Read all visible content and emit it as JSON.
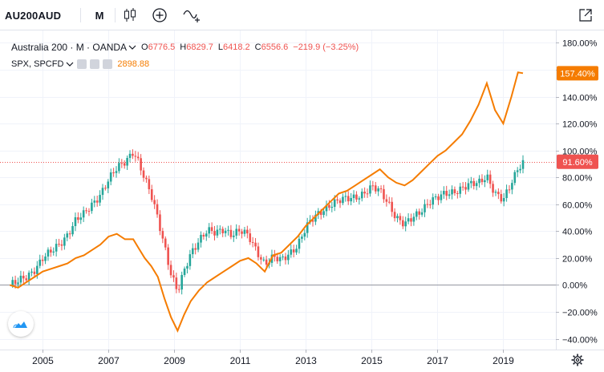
{
  "toolbar": {
    "symbol": "AU200AUD",
    "interval": "M",
    "icons": [
      "candles-icon",
      "plus-circle-icon",
      "indicators-icon",
      "fullscreen-icon"
    ]
  },
  "legend": {
    "main_title": "Australia 200 · M · OANDA",
    "open_key": "O",
    "open_val": "6776.5",
    "high_key": "H",
    "high_val": "6829.7",
    "low_key": "L",
    "low_val": "6418.2",
    "close_key": "C",
    "close_val": "6556.6",
    "change": "−219.9 (−3.25%)",
    "compare_title": "SPX, SPCFD",
    "compare_val": "2898.88"
  },
  "colors": {
    "up": "#26a69a",
    "down": "#ef5350",
    "compare": "#f57c00",
    "grid": "#e0e3eb"
  },
  "chart_data": {
    "type": "line",
    "title": "",
    "y_unit": "%",
    "ylim": [
      -48,
      188
    ],
    "y_ticks": [
      "180.00%",
      "160.00%",
      "140.00%",
      "120.00%",
      "100.00%",
      "80.00%",
      "60.00%",
      "40.00%",
      "20.00%",
      "0.00%",
      "−20.00%",
      "−40.00%"
    ],
    "y_tick_values": [
      180,
      160,
      140,
      120,
      100,
      80,
      60,
      40,
      20,
      0,
      -20,
      -40
    ],
    "x_ticks": [
      "2005",
      "2007",
      "2009",
      "2011",
      "2013",
      "2015",
      "2017",
      "2019"
    ],
    "x_tick_years": [
      2005,
      2007,
      2009,
      2011,
      2013,
      2015,
      2017,
      2019
    ],
    "xlim": [
      2003.7,
      2020.6
    ],
    "badges": {
      "compare": {
        "label": "157.40%",
        "value": 157.4
      },
      "main": {
        "label": "91.60%",
        "value": 91.6
      }
    },
    "series": [
      {
        "name": "Australia 200",
        "style": "candles",
        "x": [
          2004.0,
          2004.25,
          2004.5,
          2004.75,
          2005.0,
          2005.25,
          2005.5,
          2005.75,
          2006.0,
          2006.25,
          2006.5,
          2006.75,
          2007.0,
          2007.25,
          2007.5,
          2007.75,
          2007.9,
          2008.1,
          2008.3,
          2008.5,
          2008.7,
          2008.9,
          2009.1,
          2009.3,
          2009.5,
          2009.75,
          2010.0,
          2010.25,
          2010.5,
          2010.75,
          2011.0,
          2011.25,
          2011.5,
          2011.75,
          2012.0,
          2012.25,
          2012.5,
          2012.75,
          2013.0,
          2013.25,
          2013.5,
          2013.75,
          2014.0,
          2014.25,
          2014.5,
          2014.75,
          2015.0,
          2015.25,
          2015.5,
          2015.75,
          2016.0,
          2016.25,
          2016.5,
          2016.75,
          2017.0,
          2017.25,
          2017.5,
          2017.75,
          2018.0,
          2018.25,
          2018.5,
          2018.75,
          2019.0,
          2019.25,
          2019.45,
          2019.6
        ],
        "values": [
          0,
          2,
          6,
          12,
          20,
          24,
          30,
          38,
          48,
          52,
          60,
          68,
          78,
          86,
          92,
          100,
          92,
          78,
          66,
          50,
          30,
          8,
          -6,
          10,
          24,
          34,
          40,
          38,
          42,
          38,
          40,
          36,
          26,
          16,
          20,
          18,
          24,
          30,
          42,
          50,
          56,
          60,
          62,
          64,
          66,
          68,
          72,
          70,
          62,
          50,
          44,
          50,
          56,
          62,
          64,
          68,
          70,
          72,
          74,
          76,
          82,
          68,
          62,
          76,
          88,
          91.6
        ]
      },
      {
        "name": "SPX, SPCFD",
        "style": "line",
        "x": [
          2004.0,
          2004.25,
          2004.5,
          2004.75,
          2005.0,
          2005.25,
          2005.5,
          2005.75,
          2006.0,
          2006.25,
          2006.5,
          2006.75,
          2007.0,
          2007.25,
          2007.5,
          2007.75,
          2007.9,
          2008.1,
          2008.3,
          2008.5,
          2008.7,
          2008.9,
          2009.1,
          2009.3,
          2009.5,
          2009.75,
          2010.0,
          2010.25,
          2010.5,
          2010.75,
          2011.0,
          2011.25,
          2011.5,
          2011.75,
          2012.0,
          2012.25,
          2012.5,
          2012.75,
          2013.0,
          2013.25,
          2013.5,
          2013.75,
          2014.0,
          2014.25,
          2014.5,
          2014.75,
          2015.0,
          2015.25,
          2015.5,
          2015.75,
          2016.0,
          2016.25,
          2016.5,
          2016.75,
          2017.0,
          2017.25,
          2017.5,
          2017.75,
          2018.0,
          2018.25,
          2018.5,
          2018.75,
          2019.0,
          2019.25,
          2019.45,
          2019.6
        ],
        "values": [
          0,
          -2,
          2,
          6,
          10,
          12,
          14,
          16,
          20,
          22,
          26,
          30,
          36,
          38,
          34,
          34,
          28,
          20,
          14,
          6,
          -10,
          -24,
          -34,
          -22,
          -12,
          -4,
          2,
          6,
          10,
          14,
          18,
          20,
          16,
          10,
          22,
          24,
          30,
          36,
          44,
          50,
          56,
          62,
          68,
          70,
          74,
          78,
          82,
          86,
          80,
          76,
          74,
          78,
          84,
          90,
          96,
          100,
          106,
          112,
          122,
          134,
          150,
          130,
          120,
          140,
          158,
          157.4
        ]
      }
    ]
  }
}
